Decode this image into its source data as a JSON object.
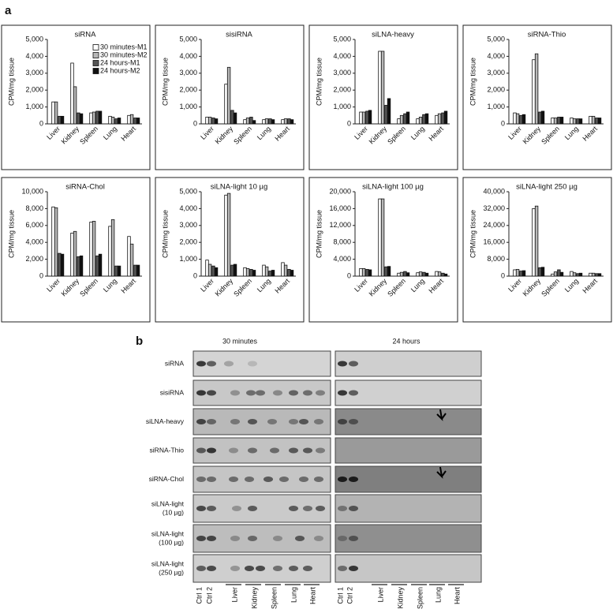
{
  "panel_labels": [
    "a",
    "b"
  ],
  "chart_data": [
    {
      "type": "bar",
      "title": "siRNA",
      "ylabel": "CPM/mg tissue",
      "categories": [
        "Liver",
        "Kidney",
        "Spleen",
        "Lung",
        "Heart"
      ],
      "ylim": [
        0,
        5000
      ],
      "yticks": [
        0,
        {
          "value": 1000,
          "label": "1,000"
        },
        {
          "value": 2000,
          "label": "2,000"
        },
        {
          "value": 3000,
          "label": "3,000"
        },
        {
          "value": 4000,
          "label": "4,000"
        },
        {
          "value": 5000,
          "label": "5,000"
        }
      ],
      "series": [
        {
          "name": "30 minutes-M1",
          "color": "#ffffff",
          "values": [
            1300,
            3600,
            650,
            450,
            500
          ]
        },
        {
          "name": "30 minutes-M2",
          "color": "#b8b8b8",
          "values": [
            1300,
            2200,
            700,
            400,
            550
          ]
        },
        {
          "name": "24 hours-M1",
          "color": "#555555",
          "values": [
            450,
            650,
            750,
            300,
            350
          ]
        },
        {
          "name": "24 hours-M2",
          "color": "#111111",
          "values": [
            450,
            600,
            750,
            350,
            350
          ]
        }
      ]
    },
    {
      "type": "bar",
      "title": "sisiRNA",
      "ylabel": "CPM/mg tissue",
      "categories": [
        "Liver",
        "Kidney",
        "Spleen",
        "Lung",
        "Heart"
      ],
      "ylim": [
        0,
        5000
      ],
      "yticks": [
        0,
        {
          "value": 1000,
          "label": "1,000"
        },
        {
          "value": 2000,
          "label": "2,000"
        },
        {
          "value": 3000,
          "label": "3,000"
        },
        {
          "value": 4000,
          "label": "4,000"
        },
        {
          "value": 5000,
          "label": "5,000"
        }
      ],
      "series": [
        {
          "color": "#ffffff",
          "values": [
            400,
            2350,
            250,
            250,
            250
          ]
        },
        {
          "color": "#b8b8b8",
          "values": [
            400,
            3350,
            350,
            300,
            300
          ]
        },
        {
          "color": "#555555",
          "values": [
            350,
            800,
            400,
            300,
            300
          ]
        },
        {
          "color": "#111111",
          "values": [
            300,
            650,
            200,
            250,
            250
          ]
        }
      ]
    },
    {
      "type": "bar",
      "title": "siLNA-heavy",
      "ylabel": "CPM/mg tissue",
      "categories": [
        "Liver",
        "Kidney",
        "Spleen",
        "Lung",
        "Heart"
      ],
      "ylim": [
        0,
        5000
      ],
      "yticks": [
        0,
        {
          "value": 1000,
          "label": "1,000"
        },
        {
          "value": 2000,
          "label": "2,000"
        },
        {
          "value": 3000,
          "label": "3,000"
        },
        {
          "value": 4000,
          "label": "4,000"
        },
        {
          "value": 5000,
          "label": "5,000"
        }
      ],
      "series": [
        {
          "color": "#ffffff",
          "values": [
            700,
            4300,
            300,
            300,
            500
          ]
        },
        {
          "color": "#b8b8b8",
          "values": [
            700,
            4300,
            500,
            400,
            600
          ]
        },
        {
          "color": "#555555",
          "values": [
            750,
            1100,
            600,
            550,
            650
          ]
        },
        {
          "color": "#111111",
          "values": [
            800,
            1500,
            700,
            600,
            750
          ]
        }
      ]
    },
    {
      "type": "bar",
      "title": "siRNA-Thio",
      "ylabel": "CPM/mg tissue",
      "categories": [
        "Liver",
        "Kidney",
        "Spleen",
        "Lung",
        "Heart"
      ],
      "ylim": [
        0,
        5000
      ],
      "yticks": [
        0,
        {
          "value": 1000,
          "label": "1,000"
        },
        {
          "value": 2000,
          "label": "2,000"
        },
        {
          "value": 3000,
          "label": "3,000"
        },
        {
          "value": 4000,
          "label": "4,000"
        },
        {
          "value": 5000,
          "label": "5,000"
        }
      ],
      "series": [
        {
          "color": "#ffffff",
          "values": [
            650,
            3800,
            350,
            350,
            450
          ]
        },
        {
          "color": "#b8b8b8",
          "values": [
            600,
            4150,
            350,
            300,
            450
          ]
        },
        {
          "color": "#555555",
          "values": [
            500,
            700,
            400,
            300,
            350
          ]
        },
        {
          "color": "#111111",
          "values": [
            550,
            750,
            400,
            300,
            350
          ]
        }
      ]
    },
    {
      "type": "bar",
      "title": "siRNA-Chol",
      "ylabel": "CPM/mg tissue",
      "categories": [
        "Liver",
        "Kidney",
        "Spleen",
        "Lung",
        "Heart"
      ],
      "ylim": [
        0,
        10000
      ],
      "yticks": [
        0,
        {
          "value": 2000,
          "label": "2,000"
        },
        {
          "value": 4000,
          "label": "4,000"
        },
        {
          "value": 6000,
          "label": "6,000"
        },
        {
          "value": 8000,
          "label": "8,000"
        },
        {
          "value": 10000,
          "label": "10,000"
        }
      ],
      "series": [
        {
          "color": "#ffffff",
          "values": [
            8200,
            5100,
            6400,
            5900,
            4700
          ]
        },
        {
          "color": "#b8b8b8",
          "values": [
            8100,
            5300,
            6500,
            6700,
            3800
          ]
        },
        {
          "color": "#555555",
          "values": [
            2700,
            2300,
            2400,
            1200,
            1300
          ]
        },
        {
          "color": "#111111",
          "values": [
            2600,
            2400,
            2600,
            1200,
            1300
          ]
        }
      ]
    },
    {
      "type": "bar",
      "title": "siLNA-light 10 µg",
      "ylabel": "CPM/mg tissue",
      "categories": [
        "Liver",
        "Kidney",
        "Spleen",
        "Lung",
        "Heart"
      ],
      "ylim": [
        0,
        5000
      ],
      "yticks": [
        0,
        {
          "value": 1000,
          "label": "1,000"
        },
        {
          "value": 2000,
          "label": "2,000"
        },
        {
          "value": 3000,
          "label": "3,000"
        },
        {
          "value": 4000,
          "label": "4,000"
        },
        {
          "value": 5000,
          "label": "5,000"
        }
      ],
      "series": [
        {
          "color": "#ffffff",
          "values": [
            950,
            4800,
            500,
            650,
            800
          ]
        },
        {
          "color": "#b8b8b8",
          "values": [
            700,
            4900,
            450,
            550,
            650
          ]
        },
        {
          "color": "#555555",
          "values": [
            600,
            650,
            400,
            300,
            400
          ]
        },
        {
          "color": "#111111",
          "values": [
            500,
            700,
            350,
            350,
            350
          ]
        }
      ]
    },
    {
      "type": "bar",
      "title": "siLNA-light 100 µg",
      "ylabel": "CPM/mg tissue",
      "categories": [
        "Liver",
        "Kidney",
        "Spleen",
        "Lung",
        "Heart"
      ],
      "ylim": [
        0,
        20000
      ],
      "yticks": [
        0,
        {
          "value": 4000,
          "label": "4,000"
        },
        {
          "value": 8000,
          "label": "8,000"
        },
        {
          "value": 12000,
          "label": "12,000"
        },
        {
          "value": 16000,
          "label": "16,000"
        },
        {
          "value": 20000,
          "label": "20,000"
        }
      ],
      "series": [
        {
          "color": "#ffffff",
          "values": [
            1800,
            18300,
            700,
            800,
            1100
          ]
        },
        {
          "color": "#b8b8b8",
          "values": [
            1800,
            18300,
            900,
            1000,
            1000
          ]
        },
        {
          "color": "#555555",
          "values": [
            1600,
            2200,
            1100,
            900,
            700
          ]
        },
        {
          "color": "#111111",
          "values": [
            1500,
            2300,
            800,
            700,
            500
          ]
        }
      ]
    },
    {
      "type": "bar",
      "title": "siLNA-light 250 µg",
      "ylabel": "CPM/mg tissue",
      "categories": [
        "Liver",
        "Kidney",
        "Spleen",
        "Lung",
        "Heart"
      ],
      "ylim": [
        0,
        40000
      ],
      "yticks": [
        0,
        {
          "value": 8000,
          "label": "8,000"
        },
        {
          "value": 16000,
          "label": "16,000"
        },
        {
          "value": 24000,
          "label": "24,000"
        },
        {
          "value": 32000,
          "label": "32,000"
        },
        {
          "value": 40000,
          "label": "40,000"
        }
      ],
      "series": [
        {
          "color": "#ffffff",
          "values": [
            3000,
            32000,
            1000,
            2200,
            1400
          ]
        },
        {
          "color": "#b8b8b8",
          "values": [
            3200,
            33200,
            2000,
            1600,
            1400
          ]
        },
        {
          "color": "#555555",
          "values": [
            2400,
            4000,
            3000,
            1200,
            1200
          ]
        },
        {
          "color": "#111111",
          "values": [
            2600,
            4200,
            1800,
            1400,
            1200
          ]
        }
      ]
    }
  ],
  "blot": {
    "columns": [
      "30 minutes",
      "24 hours"
    ],
    "rows": [
      [
        "siRNA"
      ],
      [
        "sisiRNA"
      ],
      [
        "siLNA-heavy"
      ],
      [
        "siRNA-Thio"
      ],
      [
        "siRNA-Chol"
      ],
      [
        "siLNA-light",
        "(10 µg)"
      ],
      [
        "siLNA-light",
        "(100 µg)"
      ],
      [
        "siLNA-light",
        "(250 µg)"
      ]
    ],
    "lanes": [
      "Ctrl 1",
      "Ctrl 2",
      "Liver",
      "Kidney",
      "Spleen",
      "Lung",
      "Heart"
    ]
  }
}
